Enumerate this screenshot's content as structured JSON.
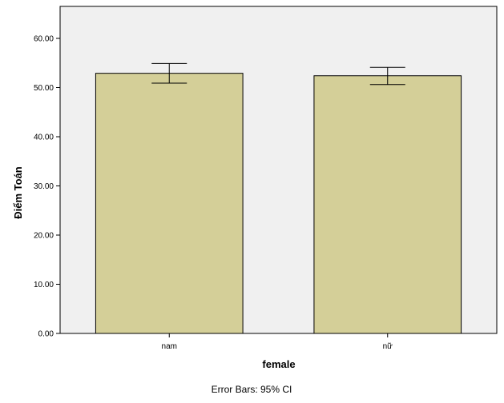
{
  "chart_data": {
    "type": "bar",
    "categories": [
      "nam",
      "nữ"
    ],
    "values": [
      52.9,
      52.4
    ],
    "ci_lower": [
      50.9,
      50.6
    ],
    "ci_upper": [
      54.9,
      54.1
    ],
    "xlabel": "female",
    "ylabel": "Điểm Toán",
    "ylim": [
      0,
      60
    ],
    "yticks": [
      0,
      10,
      20,
      30,
      40,
      50,
      60
    ],
    "ytick_labels": [
      "0.00",
      "10.00",
      "20.00",
      "30.00",
      "40.00",
      "50.00",
      "60.00"
    ],
    "grid": false,
    "footnote": "Error Bars: 95% CI",
    "colors": {
      "bar_fill": "#d4cf98",
      "plot_background": "#f0f0f0",
      "outline": "#000000"
    }
  }
}
